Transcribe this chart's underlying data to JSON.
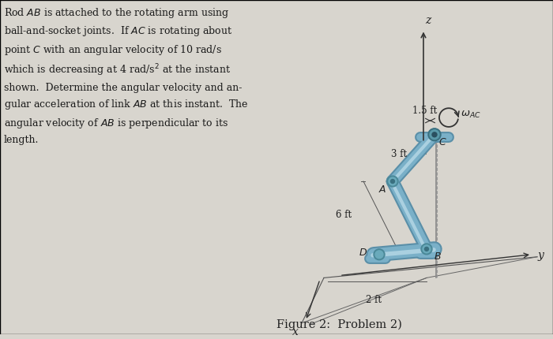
{
  "bg_color": "#d8d5ce",
  "text_color": "#1a1a1a",
  "link_color": "#7ab0c8",
  "link_color_dark": "#5a90a8",
  "joint_color": "#8ab0c0",
  "figure_caption": "Figure 2:  Problem 2)",
  "problem_text": "Rod $AB$ is attached to the rotating arm using\nball-and-socket joints.  If $AC$ is rotating about\npoint $C$ with an angular velocity of 10 rad/s\nwhich is decreasing at 4 rad/s$^2$ at the instant\nshown.  Determine the angular velocity and an-\ngular acceleration of link $AB$ at this instant.  The\nangular velocity of $AB$ is perpendicular to its\nlength.",
  "dims": {
    "6ft_label": "6 ft",
    "2ft_label": "2 ft",
    "3ft_label": "3 ft",
    "15ft_label": "1.5 ft"
  },
  "axis_labels": [
    "x",
    "y",
    "z"
  ],
  "omega_label": "$\\omega_{AC}$"
}
